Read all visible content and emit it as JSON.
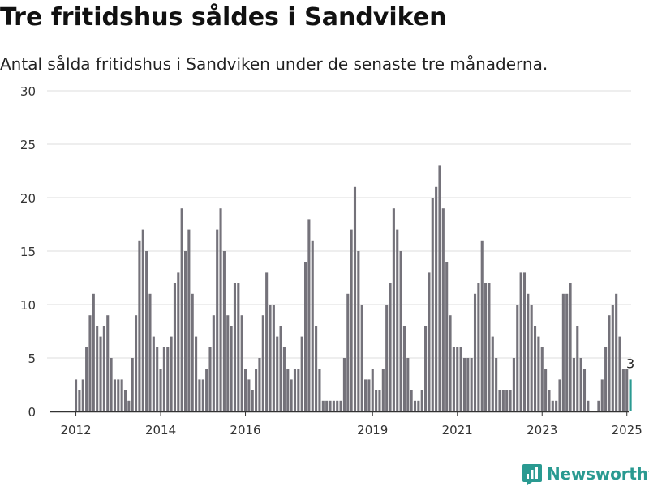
{
  "header": {
    "title": "Tre fritidshus såldes i Sandviken",
    "subtitle": "Antal sålda fritidshus i Sandviken under de senaste tre månaderna."
  },
  "brand": {
    "name": "Newsworthy",
    "color": "#2a9a91",
    "icon": "newsworthy-chart-icon"
  },
  "chart_data": {
    "type": "bar",
    "start": "2012-01",
    "x_ticks": [
      "2012",
      "2014",
      "2016",
      "2019",
      "2021",
      "2023",
      "2025"
    ],
    "y_ticks": [
      0,
      5,
      10,
      15,
      20,
      25,
      30
    ],
    "ylim": [
      0,
      30
    ],
    "grid": true,
    "bar_color": "#74727a",
    "highlight_color": "#2a9a91",
    "highlight_label": "3",
    "values": [
      3,
      2,
      3,
      6,
      9,
      11,
      8,
      7,
      8,
      9,
      5,
      3,
      3,
      3,
      2,
      1,
      5,
      9,
      16,
      17,
      15,
      11,
      7,
      6,
      4,
      6,
      6,
      7,
      12,
      13,
      19,
      15,
      17,
      11,
      7,
      3,
      3,
      4,
      6,
      9,
      17,
      19,
      15,
      9,
      8,
      12,
      12,
      9,
      4,
      3,
      2,
      4,
      5,
      9,
      13,
      10,
      10,
      7,
      8,
      6,
      4,
      3,
      4,
      4,
      7,
      14,
      18,
      16,
      8,
      4,
      1,
      1,
      1,
      1,
      1,
      1,
      5,
      11,
      17,
      21,
      15,
      10,
      3,
      3,
      4,
      2,
      2,
      4,
      10,
      12,
      19,
      17,
      15,
      8,
      5,
      2,
      1,
      1,
      2,
      8,
      13,
      20,
      21,
      23,
      19,
      14,
      9,
      6,
      6,
      6,
      5,
      5,
      5,
      11,
      12,
      16,
      12,
      12,
      7,
      5,
      2,
      2,
      2,
      2,
      5,
      10,
      13,
      13,
      11,
      10,
      8,
      7,
      6,
      4,
      2,
      1,
      1,
      3,
      11,
      11,
      12,
      5,
      8,
      5,
      4,
      1,
      0,
      0,
      1,
      3,
      6,
      9,
      10,
      11,
      7,
      4,
      4,
      3
    ]
  }
}
